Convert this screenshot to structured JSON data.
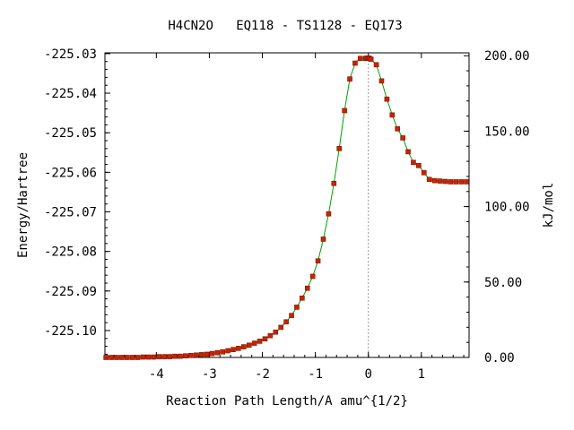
{
  "chart_data": {
    "type": "line",
    "title": "H4CN2O   EQ118 - TS1128 - EQ173",
    "xlabel": "Reaction Path Length/A amu^{1/2}",
    "ylabel": "Energy/Hartree",
    "y2label": "kJ/mol",
    "xlim": [
      -4.97,
      1.9
    ],
    "ylim": [
      -225.1068,
      -225.0298
    ],
    "y2lim": [
      0.0,
      201.9
    ],
    "x_ticks": [
      -4,
      -3,
      -2,
      -1,
      0,
      1
    ],
    "x_tick_labels": [
      "-4",
      "-3",
      "-2",
      "-1",
      "0",
      "1"
    ],
    "y_ticks": [
      -225.03,
      -225.04,
      -225.05,
      -225.06,
      -225.07,
      -225.08,
      -225.09,
      -225.1
    ],
    "y_tick_labels": [
      "-225.03",
      "-225.04",
      "-225.05",
      "-225.06",
      "-225.07",
      "-225.08",
      "-225.09",
      "-225.10"
    ],
    "y2_ticks": [
      200,
      150,
      100,
      50,
      0
    ],
    "y2_tick_labels": [
      "200.00",
      "150.00",
      "100.00",
      "50.00",
      "0.00"
    ],
    "ts_x": 0.0,
    "series": [
      {
        "line_color": "#00a000",
        "marker_color": "#cc2200",
        "x": [
          -4.95,
          -4.85,
          -4.75,
          -4.65,
          -4.55,
          -4.45,
          -4.35,
          -4.25,
          -4.15,
          -4.05,
          -3.95,
          -3.85,
          -3.75,
          -3.65,
          -3.55,
          -3.45,
          -3.35,
          -3.25,
          -3.15,
          -3.05,
          -2.95,
          -2.85,
          -2.75,
          -2.65,
          -2.55,
          -2.45,
          -2.35,
          -2.25,
          -2.15,
          -2.05,
          -1.95,
          -1.85,
          -1.75,
          -1.65,
          -1.55,
          -1.45,
          -1.35,
          -1.25,
          -1.15,
          -1.05,
          -0.95,
          -0.85,
          -0.75,
          -0.65,
          -0.55,
          -0.45,
          -0.35,
          -0.25,
          -0.15,
          -0.05,
          -0.02,
          0.0,
          0.02,
          0.05,
          0.15,
          0.25,
          0.35,
          0.45,
          0.55,
          0.65,
          0.75,
          0.85,
          0.95,
          1.05,
          1.15,
          1.25,
          1.35,
          1.45,
          1.55,
          1.65,
          1.75,
          1.85
        ],
        "y": [
          -225.1068,
          -225.1068,
          -225.1068,
          -225.1068,
          -225.1068,
          -225.1068,
          -225.1068,
          -225.1067,
          -225.1067,
          -225.1067,
          -225.1066,
          -225.1066,
          -225.1066,
          -225.1065,
          -225.1065,
          -225.1064,
          -225.1063,
          -225.1062,
          -225.1061,
          -225.106,
          -225.1058,
          -225.1056,
          -225.1054,
          -225.1051,
          -225.1048,
          -225.1045,
          -225.1041,
          -225.1037,
          -225.1032,
          -225.1027,
          -225.1021,
          -225.1013,
          -225.1004,
          -225.0992,
          -225.0978,
          -225.0962,
          -225.0941,
          -225.0918,
          -225.0893,
          -225.0863,
          -225.0824,
          -225.0769,
          -225.0705,
          -225.0628,
          -225.054,
          -225.0444,
          -225.0364,
          -225.0324,
          -225.0312,
          -225.0312,
          -225.0311,
          -225.0311,
          -225.0312,
          -225.0314,
          -225.0328,
          -225.0369,
          -225.0415,
          -225.0455,
          -225.049,
          -225.0513,
          -225.0548,
          -225.0575,
          -225.0583,
          -225.0601,
          -225.0618,
          -225.0621,
          -225.0622,
          -225.0623,
          -225.0624,
          -225.0624,
          -225.0624,
          -225.0624
        ]
      }
    ]
  }
}
